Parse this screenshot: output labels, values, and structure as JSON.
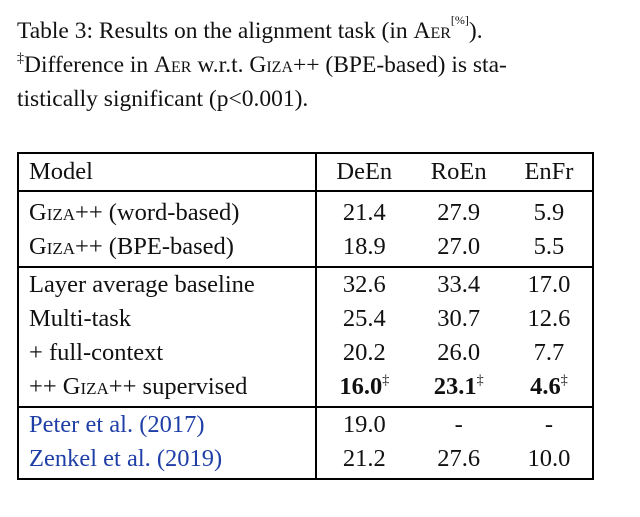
{
  "caption": {
    "line1_prefix": "Table 3: Results on the alignment task (in ",
    "line1_metric": "Aer",
    "line1_unit": "[%]",
    "line1_suffix": ").",
    "line2_dagger": "‡",
    "line2_a": "Difference in ",
    "line2_metric": "Aer",
    "line2_b": " w.r.t. ",
    "line2_system": "Giza",
    "line2_c": "++ (BPE-based) is sta-",
    "line3": "tistically significant (p<0.001)."
  },
  "table": {
    "header": {
      "model": "Model",
      "c1": "DeEn",
      "c2": "RoEn",
      "c3": "EnFr"
    },
    "rows": [
      {
        "model_sc": "Giza",
        "model": "++ (word-based)",
        "deen": "21.4",
        "roen": "27.9",
        "enfr": "5.9"
      },
      {
        "model_sc": "Giza",
        "model": "++ (BPE-based)",
        "deen": "18.9",
        "roen": "27.0",
        "enfr": "5.5"
      },
      {
        "model": "Layer average baseline",
        "deen": "32.6",
        "roen": "33.4",
        "enfr": "17.0"
      },
      {
        "model": "Multi-task",
        "deen": "25.4",
        "roen": "30.7",
        "enfr": "12.6"
      },
      {
        "model": "+ full-context",
        "deen": "20.2",
        "roen": "26.0",
        "enfr": "7.7"
      },
      {
        "model_pre": "++ ",
        "model_sc": "Giza",
        "model": "++ supervised",
        "deen": "16.0",
        "roen": "23.1",
        "enfr": "4.6",
        "mark": "‡"
      },
      {
        "model": "Peter et al. (2017)",
        "deen": "19.0",
        "roen": "-",
        "enfr": "-"
      },
      {
        "model": "Zenkel et al. (2019)",
        "deen": "21.2",
        "roen": "27.6",
        "enfr": "10.0"
      }
    ]
  },
  "colors": {
    "citation": "#1f3fa6",
    "text": "#111111",
    "rule": "#000000"
  }
}
